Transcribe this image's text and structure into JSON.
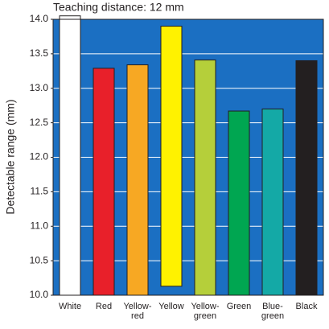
{
  "chart_data": {
    "type": "bar",
    "title": "Teaching distance: 12 mm",
    "y_label": "Detectable range (mm)",
    "categories": [
      [
        "White"
      ],
      [
        "Red"
      ],
      [
        "Yellow-",
        "red"
      ],
      [
        "Yellow"
      ],
      [
        "Yellow-",
        "green"
      ],
      [
        "Green"
      ],
      [
        "Blue-",
        "green"
      ],
      [
        "Black"
      ]
    ],
    "lows": [
      10.0,
      10.0,
      10.0,
      10.13,
      10.0,
      10.0,
      10.0,
      10.0
    ],
    "values": [
      14.05,
      13.29,
      13.34,
      13.9,
      13.41,
      12.67,
      12.7,
      13.4
    ],
    "colors": [
      "#ffffff",
      "#e8202a",
      "#f7a823",
      "#fff200",
      "#b5cf3a",
      "#00a651",
      "#14a9a6",
      "#231f20"
    ],
    "background": "#1b6fc2",
    "grid": true,
    "ylim": [
      10,
      14
    ],
    "yticks": [
      {
        "value": 10,
        "label": "10.0"
      },
      {
        "value": 10.5,
        "label": "10.5"
      },
      {
        "value": 11,
        "label": "11.0"
      },
      {
        "value": 11.5,
        "label": "11.5"
      },
      {
        "value": 12,
        "label": "12.0"
      },
      {
        "value": 12.5,
        "label": "12.5"
      },
      {
        "value": 13,
        "label": "13.0"
      },
      {
        "value": 13.5,
        "label": "13.5"
      },
      {
        "value": 14,
        "label": "14.0"
      }
    ]
  }
}
